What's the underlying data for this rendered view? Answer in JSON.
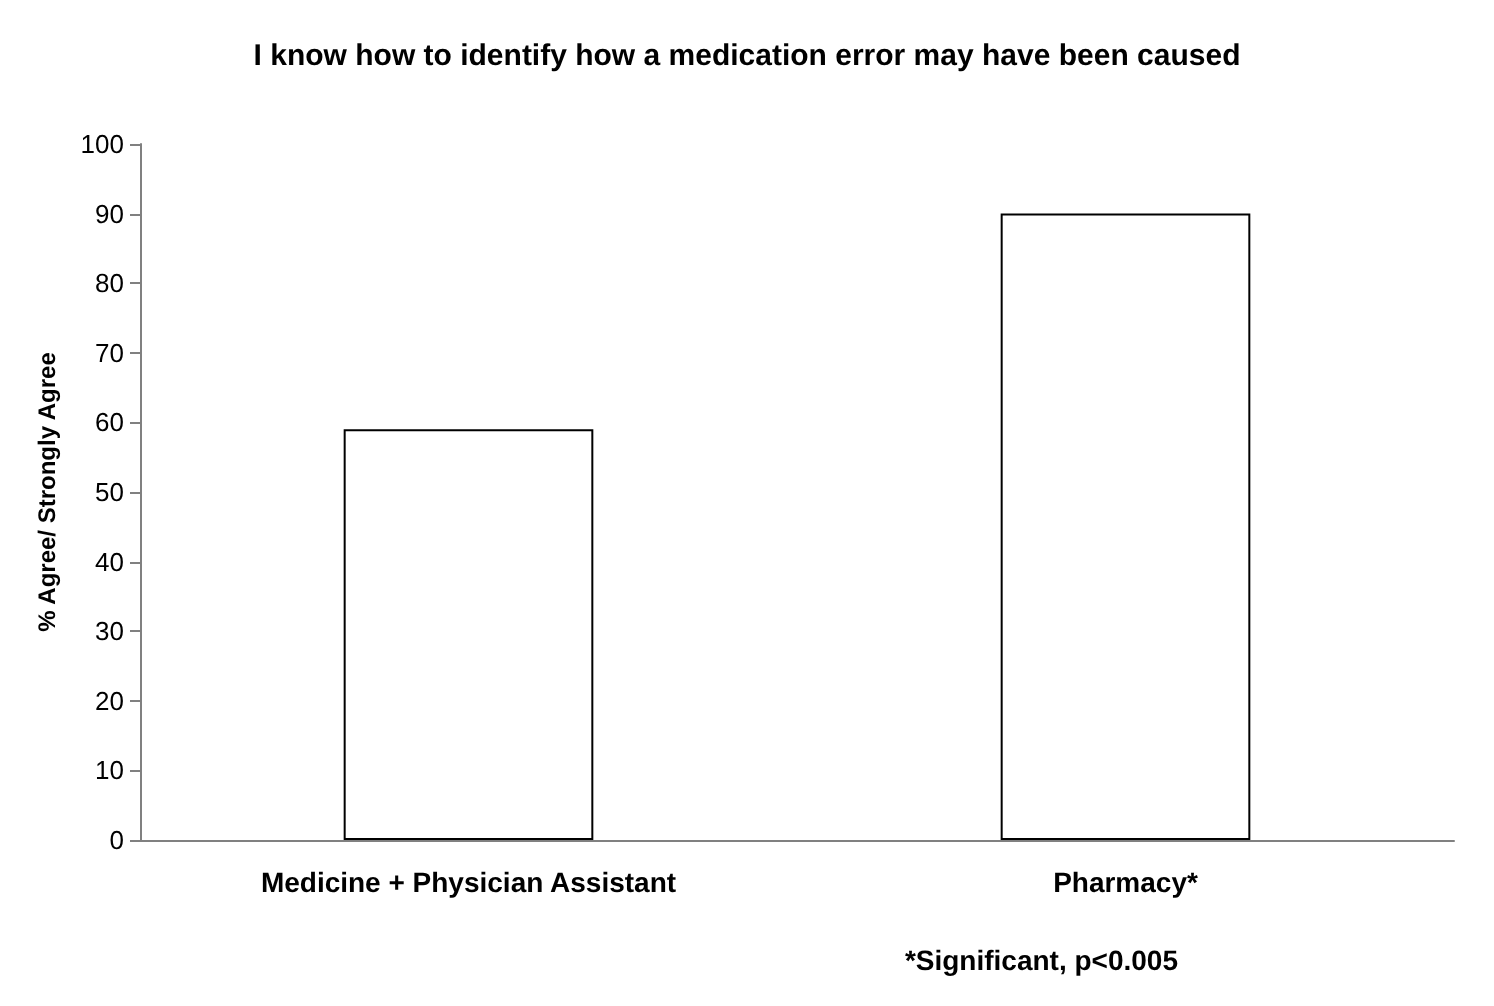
{
  "chart_data": {
    "type": "bar",
    "title": "I know how to identify how a medication error may have been caused",
    "ylabel": "% Agree/ Strongly Agree",
    "categories": [
      "Medicine + Physician Assistant",
      "Pharmacy*"
    ],
    "values": [
      59,
      90
    ],
    "color": "#ffffff",
    "ylim": [
      0,
      100
    ],
    "yticks": [
      0,
      10,
      20,
      30,
      40,
      50,
      60,
      70,
      80,
      90,
      100
    ],
    "grid": false,
    "annotations": [
      "*Significant, p<0.005"
    ]
  }
}
